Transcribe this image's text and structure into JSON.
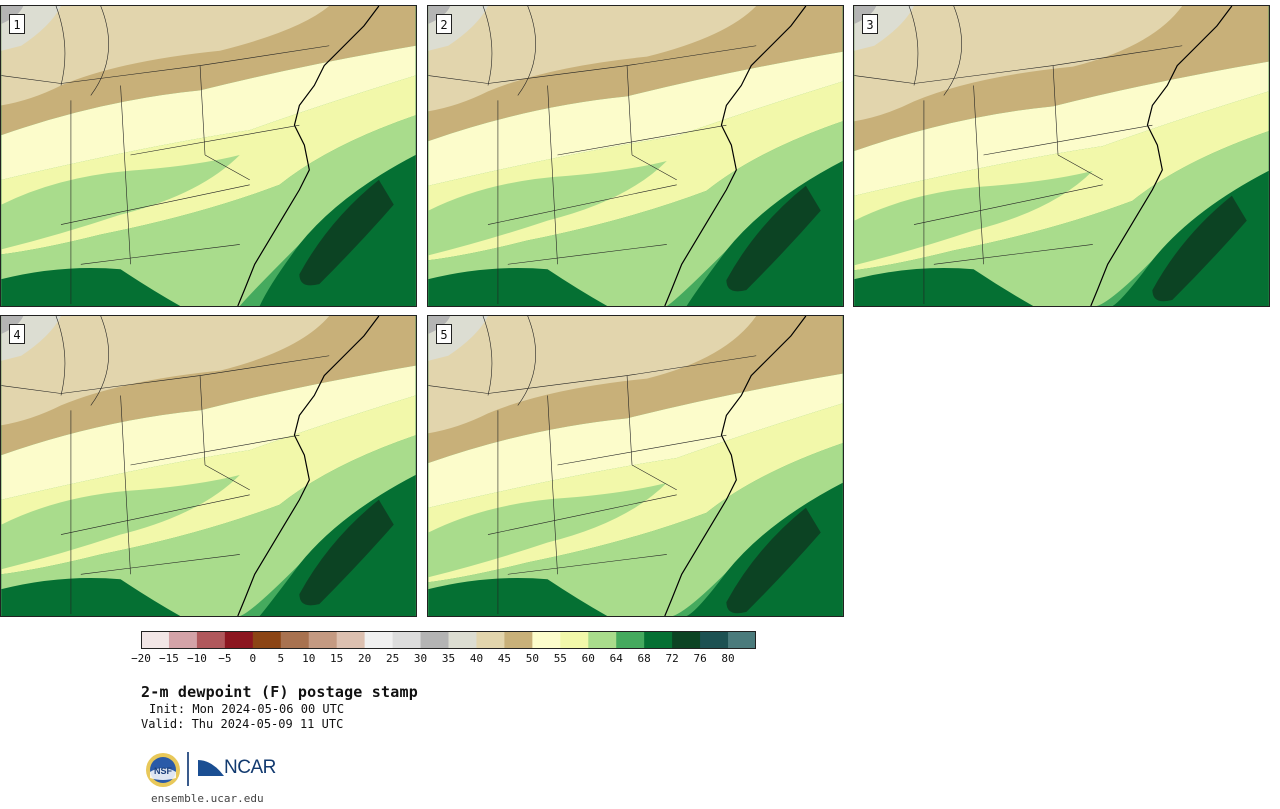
{
  "panels": [
    {
      "label": "1"
    },
    {
      "label": "2"
    },
    {
      "label": "3"
    },
    {
      "label": "4"
    },
    {
      "label": "5"
    }
  ],
  "colorbar": {
    "colors": [
      "#f2e6e6",
      "#d4a3a8",
      "#b0585c",
      "#8c1620",
      "#8c4515",
      "#a87250",
      "#c49a82",
      "#dcc0b0",
      "#f0f0f0",
      "#dcdcdc",
      "#b4b4b4",
      "#dcddd2",
      "#e2d5ad",
      "#c8b079",
      "#fcfccb",
      "#f2f8aa",
      "#a9dc8c",
      "#45aa5e",
      "#057033",
      "#0c4323",
      "#1d5152",
      "#4b7b7c"
    ],
    "ticks": [
      "−20",
      "−15",
      "−10",
      "−5",
      "0",
      "5",
      "10",
      "15",
      "20",
      "25",
      "30",
      "35",
      "40",
      "45",
      "50",
      "55",
      "60",
      "64",
      "68",
      "72",
      "76",
      "80"
    ]
  },
  "title": "2-m dewpoint (F) postage stamp",
  "init": "Init: Mon 2024-05-06 00 UTC",
  "valid": "Valid: Thu 2024-05-09 11 UTC",
  "logos": {
    "nsf": "NSF",
    "ncar": "NCAR"
  },
  "site": "ensemble.ucar.edu"
}
